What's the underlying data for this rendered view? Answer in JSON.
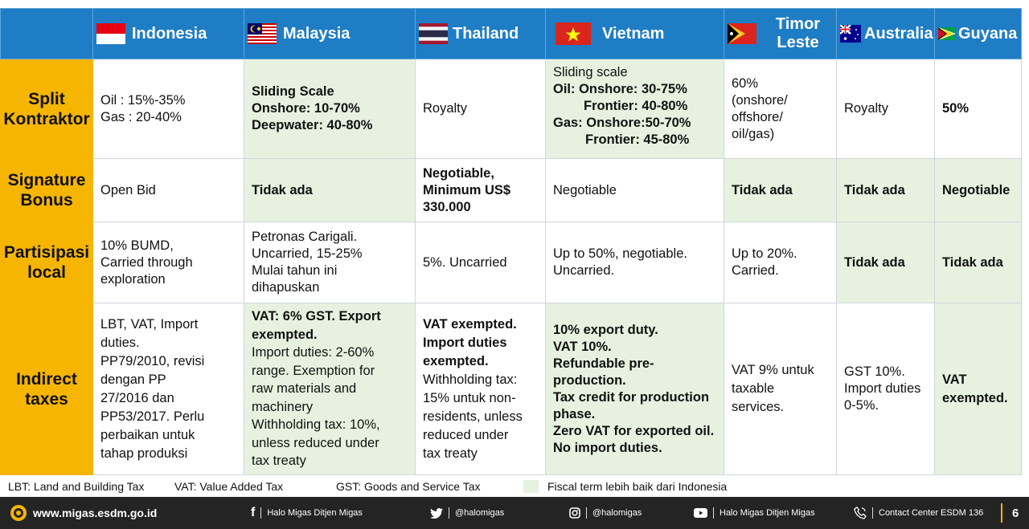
{
  "top_text": "",
  "columns": [
    {
      "country": "Indonesia",
      "flag": "indonesia-flag"
    },
    {
      "country": "Malaysia",
      "flag": "malaysia-flag"
    },
    {
      "country": "Thailand",
      "flag": "thailand-flag"
    },
    {
      "country": "Vietnam",
      "flag": "vietnam-flag"
    },
    {
      "country_line1": "Timor",
      "country_line2": "Leste",
      "flag": "timor-leste-flag"
    },
    {
      "country": "Australia",
      "flag": "australia-flag"
    },
    {
      "country": "Guyana",
      "flag": "guyana-flag"
    }
  ],
  "rows": [
    {
      "head_line1": "Split",
      "head_line2": "Kontraktor",
      "cells": {
        "indonesia": [
          "Oil : 15%-35%",
          "Gas : 20-40%"
        ],
        "malaysia": [
          "Sliding Scale",
          "Onshore: 10-70%",
          "Deepwater: 40-80%"
        ],
        "thailand": "Royalty",
        "vietnam": [
          "Sliding scale",
          "Oil:  Onshore: 30-75%",
          "Frontier: 40-80%",
          "Gas: Onshore:50-70%",
          "Frontier: 45-80%"
        ],
        "timor": [
          "60%",
          "(onshore/",
          "offshore/",
          "oil/gas)"
        ],
        "australia": "Royalty",
        "guyana": "50%"
      }
    },
    {
      "head_line1": "Signature",
      "head_line2": "Bonus",
      "cells": {
        "indonesia": "Open Bid",
        "malaysia": "Tidak ada",
        "thailand": [
          "Negotiable,",
          "Minimum US$",
          "330.000"
        ],
        "vietnam": "Negotiable",
        "timor": "Tidak ada",
        "australia": "Tidak ada",
        "guyana": "Negotiable"
      }
    },
    {
      "head_line1": "Partisipasi",
      "head_line2": "local",
      "cells": {
        "indonesia": [
          "10% BUMD,",
          "Carried through",
          "exploration"
        ],
        "malaysia": [
          "Petronas Carigali.",
          "Uncarried, 15-25%",
          "Mulai tahun ini",
          "dihapuskan"
        ],
        "thailand": "5%. Uncarried",
        "vietnam": [
          "Up to 50%, negotiable.",
          "Uncarried."
        ],
        "timor": [
          "Up to 20%.",
          "Carried."
        ],
        "australia": "Tidak ada",
        "guyana": "Tidak ada"
      }
    },
    {
      "head_line1": "Indirect",
      "head_line2": "taxes",
      "cells": {
        "indonesia": [
          "LBT, VAT, Import",
          "duties.",
          "PP79/2010, revisi",
          "dengan PP",
          "27/2016 dan",
          "PP53/2017. Perlu",
          "perbaikan untuk",
          "tahap produksi"
        ],
        "malaysia_bold": [
          "VAT: 6% GST. Export",
          "exempted."
        ],
        "malaysia": [
          "Import duties: 2-60%",
          "range. Exemption for",
          "raw materials and",
          "machinery",
          "Withholding tax: 10%,",
          "unless reduced under",
          "tax treaty"
        ],
        "thailand_bold": [
          "VAT exempted.",
          "Import duties",
          "exempted."
        ],
        "thailand": [
          "Withholding tax:",
          "15% untuk non-",
          "residents, unless",
          "reduced under",
          "tax treaty"
        ],
        "vietnam": [
          "10% export duty.",
          "VAT 10%.",
          "Refundable pre-production.",
          "Tax credit for production",
          "phase.",
          "Zero VAT for exported oil.",
          "No import duties."
        ],
        "timor": [
          "VAT 9% untuk",
          "taxable",
          "services."
        ],
        "australia": [
          "GST 10%.",
          "Import duties",
          "0-5%."
        ],
        "guyana": [
          "VAT",
          "exempted."
        ]
      }
    }
  ],
  "legend": {
    "abbr1": "LBT: Land and Building Tax",
    "abbr2": "VAT: Value Added Tax",
    "abbr3": "GST: Goods and Service Tax",
    "note": "Fiscal term lebih baik dari Indonesia",
    "note_color": "#e6f2df"
  },
  "footer": {
    "site": "www.migas.esdm.go.id",
    "facebook": "Halo Migas Ditjen Migas",
    "twitter": "@halomigas",
    "instagram": "@halomigas",
    "youtube": "Halo Migas Ditjen Migas",
    "contact": "Contact Center ESDM 136",
    "page": "6"
  },
  "colors": {
    "header_blue": "#1f7dc5",
    "row_head_yellow": "#f6b500",
    "better_green": "#e6f2df",
    "footer_dark": "#242424"
  }
}
